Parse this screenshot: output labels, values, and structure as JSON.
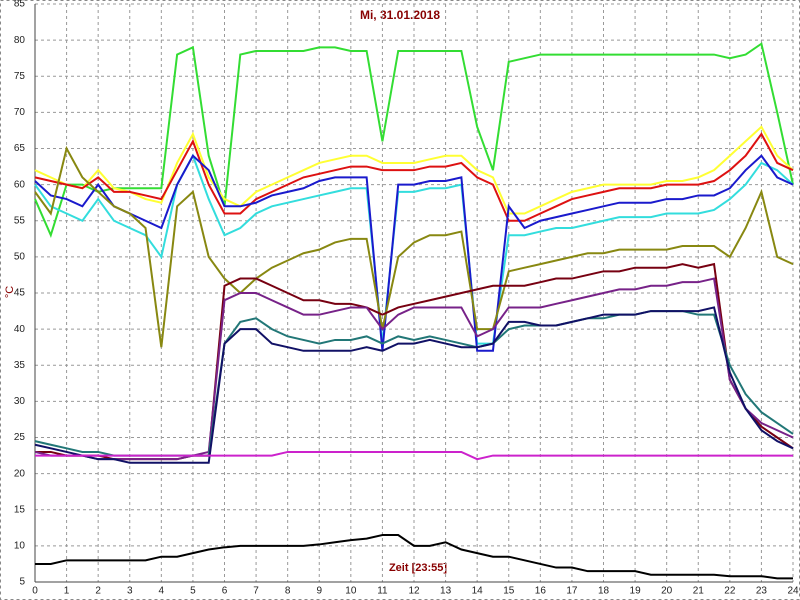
{
  "chart_data": {
    "type": "line",
    "title": "Mi, 31.01.2018",
    "y_label": "°C",
    "x_label": "Zeit [23:55]",
    "x": [
      0,
      0.5,
      1,
      1.5,
      2,
      2.5,
      3,
      3.5,
      4,
      4.5,
      5,
      5.5,
      6,
      6.5,
      7,
      7.5,
      8,
      8.5,
      9,
      9.5,
      10,
      10.5,
      11,
      11.5,
      12,
      12.5,
      13,
      13.5,
      14,
      14.5,
      15,
      15.5,
      16,
      16.5,
      17,
      17.5,
      18,
      18.5,
      19,
      19.5,
      20,
      20.5,
      21,
      21.5,
      22,
      22.5,
      23,
      23.5,
      24
    ],
    "xlim": [
      0,
      24
    ],
    "xticks": [
      0,
      1,
      2,
      3,
      4,
      5,
      6,
      7,
      8,
      9,
      10,
      11,
      12,
      13,
      14,
      15,
      16,
      17,
      18,
      19,
      20,
      21,
      22,
      23,
      24
    ],
    "ylim": [
      5,
      85
    ],
    "yticks": [
      5,
      10,
      15,
      20,
      25,
      30,
      35,
      40,
      45,
      50,
      55,
      60,
      65,
      70,
      75,
      80,
      85
    ],
    "grid": true,
    "series": [
      {
        "color": "#33dd33",
        "values": [
          58,
          53,
          60,
          60,
          59,
          59.5,
          59.5,
          59.5,
          59.5,
          78,
          79,
          64,
          57,
          78,
          78.5,
          78.5,
          78.5,
          78.5,
          79,
          79,
          78.5,
          78.5,
          66,
          78.5,
          78.5,
          78.5,
          78.5,
          78.5,
          68,
          62,
          77,
          77.5,
          78,
          78,
          78,
          78,
          78,
          78,
          78,
          78,
          78,
          78,
          78,
          78,
          77.5,
          78,
          79.5,
          70,
          60
        ]
      },
      {
        "color": "#ffff33",
        "values": [
          62,
          61,
          60,
          59.5,
          62,
          59.5,
          59,
          58,
          57.5,
          63,
          67,
          61,
          58,
          57,
          59,
          60,
          61,
          62,
          63,
          63.5,
          64,
          64,
          63,
          63,
          63,
          63.5,
          64,
          64,
          62,
          61,
          56,
          56,
          57,
          58,
          59,
          59.5,
          60,
          60,
          60,
          60,
          60.5,
          60.5,
          61,
          62,
          64,
          66,
          68,
          64,
          62
        ]
      },
      {
        "color": "#dd1111",
        "values": [
          61,
          60.5,
          60,
          59.5,
          61,
          59,
          59,
          58.5,
          58,
          62,
          66,
          60,
          56,
          56,
          58,
          59,
          60,
          61,
          61.5,
          62,
          62.5,
          62.5,
          62,
          62,
          62,
          62.5,
          62.5,
          63,
          61,
          60,
          55,
          55,
          56,
          57,
          58,
          58.5,
          59,
          59.5,
          59.5,
          59.5,
          60,
          60,
          60,
          60.5,
          62,
          64,
          67,
          63,
          62
        ]
      },
      {
        "color": "#33dddd",
        "values": [
          60,
          57,
          56,
          55,
          58,
          55,
          54,
          53,
          50,
          60,
          64,
          58,
          53,
          54,
          56,
          57,
          57.5,
          58,
          58.5,
          59,
          59.5,
          59.5,
          38,
          59,
          59,
          59.5,
          59.5,
          60,
          38,
          38,
          53,
          53,
          53.5,
          54,
          54,
          54.5,
          55,
          55.5,
          55.5,
          55.5,
          56,
          56,
          56,
          56.5,
          58,
          60,
          63,
          62,
          60
        ]
      },
      {
        "color": "#1a1acc",
        "values": [
          60.5,
          58.5,
          58,
          57,
          60,
          57,
          56,
          55,
          54,
          60,
          64,
          62,
          57,
          57,
          57.5,
          58.5,
          59,
          59.5,
          60.5,
          61,
          61,
          61,
          37,
          60,
          60,
          60.5,
          60.5,
          61,
          37,
          37,
          57,
          54,
          55,
          55.5,
          56,
          56.5,
          57,
          57.5,
          57.5,
          57.5,
          58,
          58,
          58.5,
          58.5,
          59.5,
          62,
          64,
          61,
          60
        ]
      },
      {
        "color": "#888811",
        "values": [
          59,
          56,
          65,
          61,
          59,
          57,
          56,
          54,
          37.5,
          57,
          59,
          50,
          47,
          45,
          47,
          48.5,
          49.5,
          50.5,
          51,
          52,
          52.5,
          52.5,
          40,
          50,
          52,
          53,
          53,
          53.5,
          40,
          40,
          48,
          48.5,
          49,
          49.5,
          50,
          50.5,
          50.5,
          51,
          51,
          51,
          51,
          51.5,
          51.5,
          51.5,
          50,
          54,
          59,
          50,
          49
        ]
      },
      {
        "color": "#770011",
        "values": [
          23,
          23,
          22.5,
          22.5,
          22.5,
          22,
          22,
          22,
          22,
          22,
          22.5,
          22.5,
          46,
          47,
          47,
          46,
          45,
          44,
          44,
          43.5,
          43.5,
          43,
          42,
          43,
          43.5,
          44,
          44.5,
          45,
          45.5,
          46,
          46,
          46,
          46.5,
          47,
          47,
          47.5,
          48,
          48,
          48.5,
          48.5,
          48.5,
          49,
          48.5,
          49,
          33,
          29,
          26.5,
          25,
          23.5
        ]
      },
      {
        "color": "#772288",
        "values": [
          23,
          22.5,
          22.5,
          22.5,
          22,
          22,
          22,
          22,
          22,
          22,
          22.5,
          23,
          44,
          45,
          45,
          44,
          43,
          42,
          42,
          42.5,
          43,
          43,
          40,
          42,
          43,
          43,
          43,
          43,
          39,
          40,
          43,
          43,
          43,
          43.5,
          44,
          44.5,
          45,
          45.5,
          45.5,
          46,
          46,
          46.5,
          46.5,
          47,
          33,
          29,
          27,
          26,
          25
        ]
      },
      {
        "color": "#227777",
        "values": [
          24.5,
          24,
          23.5,
          23,
          23,
          22.5,
          22.5,
          22.5,
          22.5,
          22.5,
          22.5,
          22.5,
          38,
          41,
          41.5,
          40,
          39,
          38.5,
          38,
          38.5,
          38.5,
          39,
          38,
          39,
          38.5,
          39,
          38.5,
          38,
          37.5,
          38,
          40,
          40.5,
          40.5,
          40.5,
          41,
          41.5,
          41.5,
          42,
          42,
          42.5,
          42.5,
          42.5,
          42,
          42,
          35,
          31,
          28.5,
          27,
          25.5
        ]
      },
      {
        "color": "#111166",
        "values": [
          24,
          23.5,
          23,
          22.5,
          22,
          22,
          21.5,
          21.5,
          21.5,
          21.5,
          21.5,
          21.5,
          38,
          40,
          40,
          38,
          37.5,
          37,
          37,
          37,
          37,
          37.5,
          37,
          38,
          38,
          38.5,
          38,
          37.5,
          37.5,
          38,
          41,
          41,
          40.5,
          40.5,
          41,
          41.5,
          42,
          42,
          42,
          42.5,
          42.5,
          42.5,
          42.5,
          43,
          34,
          29,
          26,
          24.5,
          23.5
        ]
      },
      {
        "color": "#cc22cc",
        "values": [
          22.5,
          22.5,
          22.5,
          22.5,
          22.5,
          22.5,
          22.5,
          22.5,
          22.5,
          22.5,
          22.5,
          22.5,
          22.5,
          22.5,
          22.5,
          22.5,
          23,
          23,
          23,
          23,
          23,
          23,
          23,
          23,
          23,
          23,
          23,
          23,
          22,
          22.5,
          22.5,
          22.5,
          22.5,
          22.5,
          22.5,
          22.5,
          22.5,
          22.5,
          22.5,
          22.5,
          22.5,
          22.5,
          22.5,
          22.5,
          22.5,
          22.5,
          22.5,
          22.5,
          22.5
        ]
      },
      {
        "color": "#000000",
        "values": [
          7.5,
          7.5,
          8,
          8,
          8,
          8,
          8,
          8,
          8.5,
          8.5,
          9,
          9.5,
          9.8,
          10,
          10,
          10,
          10,
          10,
          10.2,
          10.5,
          10.8,
          11,
          11.5,
          11.5,
          10,
          10,
          10.5,
          9.5,
          9,
          8.5,
          8.5,
          8,
          7.5,
          7,
          7,
          6.5,
          6.5,
          6.5,
          6.5,
          6,
          6,
          6,
          6,
          6,
          5.8,
          5.8,
          5.8,
          5.5,
          5.5
        ]
      }
    ]
  }
}
